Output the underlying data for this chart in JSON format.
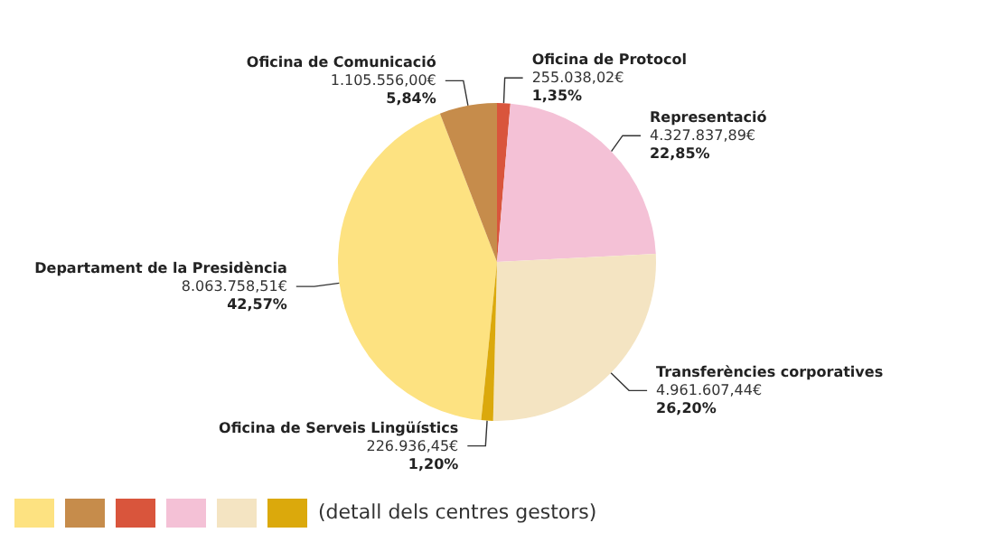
{
  "chart_data": {
    "type": "pie",
    "categories": [
      "Departament de la Presidència",
      "Oficina de Comunicació",
      "Oficina de Protocol",
      "Representació",
      "Transferències corporatives",
      "Oficina de Serveis Lingüístics"
    ],
    "values": [
      8063758.51,
      1105556.0,
      255038.02,
      4327837.89,
      4961607.44,
      226936.45
    ],
    "value_labels": [
      "8.063.758,51€\n42,57%",
      "1.105.556,00€\n5,84%",
      "255.038,02€\n1,35%",
      "4.327.837,89€\n22,85%",
      "4.961.607,44€\n26,20%",
      "226.936,45€\n1,20%"
    ],
    "colors": [
      "#fde281",
      "#c68c4b",
      "#d9553c",
      "#f4c1d6",
      "#f4e4c2",
      "#dba90c"
    ],
    "annotations": [
      "(detall dels centres gestors)"
    ]
  }
}
